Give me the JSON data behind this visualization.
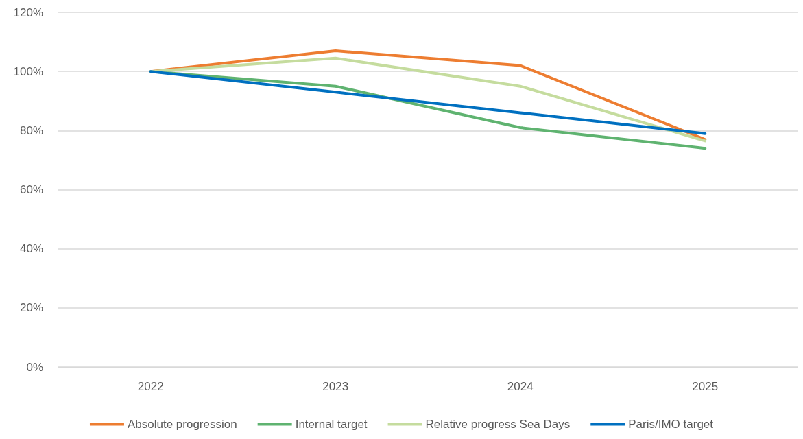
{
  "chart_data": {
    "type": "line",
    "categories": [
      "2022",
      "2023",
      "2024",
      "2025"
    ],
    "series": [
      {
        "name": "Absolute progression",
        "color": "#ed7d31",
        "values": [
          100,
          107,
          102,
          77
        ]
      },
      {
        "name": "Internal target",
        "color": "#5fb370",
        "values": [
          100,
          95,
          81,
          74
        ]
      },
      {
        "name": "Relative progress Sea Days",
        "color": "#c5dc9e",
        "values": [
          100,
          104.5,
          95,
          76.5
        ]
      },
      {
        "name": "Paris/IMO target",
        "color": "#0070c0",
        "values": [
          100,
          93,
          86,
          79
        ]
      }
    ],
    "ylim": [
      0,
      120
    ],
    "yticks": [
      {
        "value": 0,
        "label": "0%"
      },
      {
        "value": 20,
        "label": "20%"
      },
      {
        "value": 40,
        "label": "40%"
      },
      {
        "value": 60,
        "label": "60%"
      },
      {
        "value": 80,
        "label": "80%"
      },
      {
        "value": 100,
        "label": "100%"
      },
      {
        "value": 120,
        "label": "120%"
      }
    ],
    "grid": "y",
    "legend": "bottom",
    "marker": "none",
    "line_style": "solid"
  }
}
